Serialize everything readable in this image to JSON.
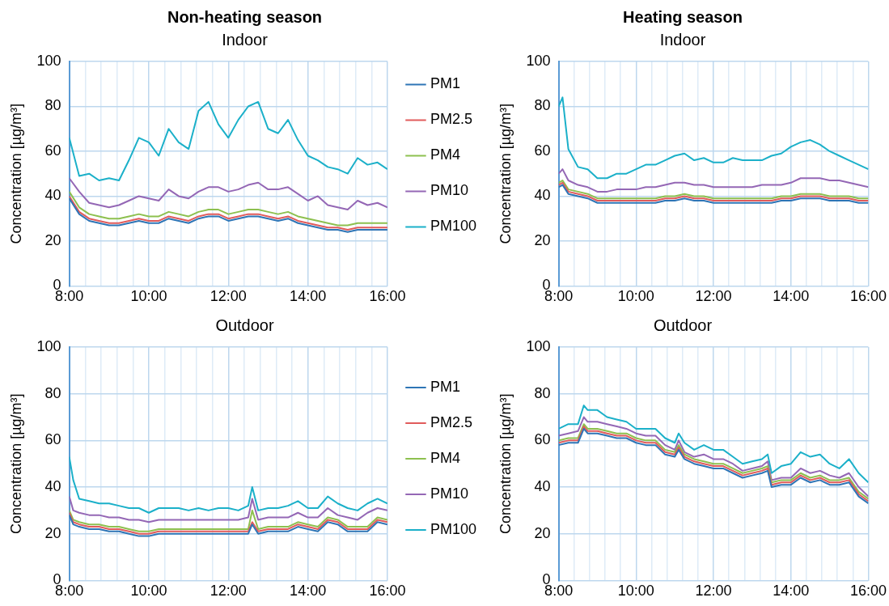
{
  "chart_data": [
    {
      "type": "line",
      "title": "Non-heating season",
      "subtitle": "Indoor",
      "ylabel": "Concentration [µg/m³]",
      "xlim": [
        8,
        16
      ],
      "ylim": [
        0,
        100
      ],
      "yticks": [
        0,
        20,
        40,
        60,
        80,
        100
      ],
      "xticks": [
        {
          "value": 8,
          "label": "8:00"
        },
        {
          "value": 8.4,
          "label": null
        },
        {
          "value": 8.8,
          "label": null
        },
        {
          "value": 9.2,
          "label": null
        },
        {
          "value": 9.6,
          "label": null
        },
        {
          "value": 10,
          "label": "10:00"
        },
        {
          "value": 10.4,
          "label": null
        },
        {
          "value": 10.8,
          "label": null
        },
        {
          "value": 11.2,
          "label": null
        },
        {
          "value": 11.6,
          "label": null
        },
        {
          "value": 12,
          "label": "12:00"
        },
        {
          "value": 12.4,
          "label": null
        },
        {
          "value": 12.8,
          "label": null
        },
        {
          "value": 13.2,
          "label": null
        },
        {
          "value": 13.6,
          "label": null
        },
        {
          "value": 14,
          "label": "14:00"
        },
        {
          "value": 14.4,
          "label": null
        },
        {
          "value": 14.8,
          "label": null
        },
        {
          "value": 15.2,
          "label": null
        },
        {
          "value": 15.6,
          "label": null
        },
        {
          "value": 16,
          "label": "16:00"
        }
      ],
      "grid": true,
      "legend": "right",
      "marker": "none",
      "x": [
        8,
        8.25,
        8.5,
        8.75,
        9,
        9.25,
        9.5,
        9.75,
        10,
        10.25,
        10.5,
        10.75,
        11,
        11.25,
        11.5,
        11.75,
        12,
        12.25,
        12.5,
        12.75,
        13,
        13.25,
        13.5,
        13.75,
        14,
        14.25,
        14.5,
        14.75,
        15,
        15.25,
        15.5,
        15.75,
        16
      ],
      "series": [
        {
          "name": "PM1",
          "color": "#2e75b6",
          "values": [
            39,
            32,
            29,
            28,
            27,
            27,
            28,
            29,
            28,
            28,
            30,
            29,
            28,
            30,
            31,
            31,
            29,
            30,
            31,
            31,
            30,
            29,
            30,
            28,
            27,
            26,
            25,
            25,
            24,
            25,
            25,
            25,
            25
          ]
        },
        {
          "name": "PM2.5",
          "color": "#e15b5b",
          "values": [
            40,
            33,
            30,
            29,
            28,
            28,
            29,
            30,
            29,
            29,
            31,
            30,
            29,
            31,
            32,
            32,
            30,
            31,
            32,
            32,
            31,
            30,
            31,
            29,
            28,
            27,
            26,
            26,
            25,
            26,
            26,
            26,
            26
          ]
        },
        {
          "name": "PM4",
          "color": "#8dc04f",
          "values": [
            42,
            35,
            32,
            31,
            30,
            30,
            31,
            32,
            31,
            31,
            33,
            32,
            31,
            33,
            34,
            34,
            32,
            33,
            34,
            34,
            33,
            32,
            33,
            31,
            30,
            29,
            28,
            27,
            27,
            28,
            28,
            28,
            28
          ]
        },
        {
          "name": "PM10",
          "color": "#9467b5",
          "values": [
            48,
            42,
            37,
            36,
            35,
            36,
            38,
            40,
            39,
            38,
            43,
            40,
            39,
            42,
            44,
            44,
            42,
            43,
            45,
            46,
            43,
            43,
            44,
            41,
            38,
            40,
            36,
            35,
            34,
            38,
            36,
            37,
            35
          ]
        },
        {
          "name": "PM100",
          "color": "#1bb0c9",
          "values": [
            66,
            49,
            50,
            47,
            48,
            47,
            56,
            66,
            64,
            58,
            70,
            64,
            61,
            78,
            82,
            72,
            66,
            74,
            80,
            82,
            70,
            68,
            74,
            65,
            58,
            56,
            53,
            52,
            50,
            57,
            54,
            55,
            52
          ]
        }
      ]
    },
    {
      "type": "line",
      "title": "Heating season",
      "subtitle": "Indoor",
      "ylabel": "Concentration [µg/m³]",
      "xlim": [
        8,
        16
      ],
      "ylim": [
        0,
        100
      ],
      "yticks": [
        0,
        20,
        40,
        60,
        80,
        100
      ],
      "xticks": [
        {
          "value": 8,
          "label": "8:00"
        },
        {
          "value": 8.4,
          "label": null
        },
        {
          "value": 8.8,
          "label": null
        },
        {
          "value": 9.2,
          "label": null
        },
        {
          "value": 9.6,
          "label": null
        },
        {
          "value": 10,
          "label": "10:00"
        },
        {
          "value": 10.4,
          "label": null
        },
        {
          "value": 10.8,
          "label": null
        },
        {
          "value": 11.2,
          "label": null
        },
        {
          "value": 11.6,
          "label": null
        },
        {
          "value": 12,
          "label": "12:00"
        },
        {
          "value": 12.4,
          "label": null
        },
        {
          "value": 12.8,
          "label": null
        },
        {
          "value": 13.2,
          "label": null
        },
        {
          "value": 13.6,
          "label": null
        },
        {
          "value": 14,
          "label": "14:00"
        },
        {
          "value": 14.4,
          "label": null
        },
        {
          "value": 14.8,
          "label": null
        },
        {
          "value": 15.2,
          "label": null
        },
        {
          "value": 15.6,
          "label": null
        },
        {
          "value": 16,
          "label": "16:00"
        }
      ],
      "grid": true,
      "marker": "none",
      "x": [
        8,
        8.1,
        8.25,
        8.5,
        8.75,
        9,
        9.25,
        9.5,
        9.75,
        10,
        10.25,
        10.5,
        10.75,
        11,
        11.25,
        11.5,
        11.75,
        12,
        12.25,
        12.5,
        12.75,
        13,
        13.25,
        13.5,
        13.75,
        14,
        14.25,
        14.5,
        14.75,
        15,
        15.25,
        15.5,
        15.75,
        16
      ],
      "series": [
        {
          "color": "#2e75b6",
          "values": [
            44,
            45,
            41,
            40,
            39,
            37,
            37,
            37,
            37,
            37,
            37,
            37,
            38,
            38,
            39,
            38,
            38,
            37,
            37,
            37,
            37,
            37,
            37,
            37,
            38,
            38,
            39,
            39,
            39,
            38,
            38,
            38,
            37,
            37
          ]
        },
        {
          "color": "#e15b5b",
          "values": [
            45,
            46,
            42,
            41,
            40,
            38,
            38,
            38,
            38,
            38,
            38,
            38,
            39,
            39,
            40,
            39,
            39,
            38,
            38,
            38,
            38,
            38,
            38,
            38,
            39,
            39,
            40,
            40,
            40,
            39,
            39,
            39,
            38,
            38
          ]
        },
        {
          "color": "#8dc04f",
          "values": [
            46,
            47,
            43,
            42,
            41,
            39,
            39,
            39,
            39,
            39,
            39,
            39,
            40,
            40,
            41,
            40,
            40,
            39,
            39,
            39,
            39,
            39,
            39,
            39,
            40,
            40,
            41,
            41,
            41,
            40,
            40,
            40,
            39,
            39
          ]
        },
        {
          "color": "#9467b5",
          "values": [
            50,
            52,
            47,
            45,
            44,
            42,
            42,
            43,
            43,
            43,
            44,
            44,
            45,
            46,
            46,
            45,
            45,
            44,
            44,
            44,
            44,
            44,
            45,
            45,
            45,
            46,
            48,
            48,
            48,
            47,
            47,
            46,
            45,
            44
          ]
        },
        {
          "color": "#1bb0c9",
          "values": [
            80,
            84,
            61,
            53,
            52,
            48,
            48,
            50,
            50,
            52,
            54,
            54,
            56,
            58,
            59,
            56,
            57,
            55,
            55,
            57,
            56,
            56,
            56,
            58,
            59,
            62,
            64,
            65,
            63,
            60,
            58,
            56,
            54,
            52
          ]
        }
      ]
    },
    {
      "type": "line",
      "subtitle": "Outdoor",
      "ylabel": "Concentration [µg/m³]",
      "xlim": [
        8,
        16
      ],
      "ylim": [
        0,
        100
      ],
      "yticks": [
        0,
        20,
        40,
        60,
        80,
        100
      ],
      "xticks": [
        {
          "value": 8,
          "label": "8:00"
        },
        {
          "value": 8.4,
          "label": null
        },
        {
          "value": 8.8,
          "label": null
        },
        {
          "value": 9.2,
          "label": null
        },
        {
          "value": 9.6,
          "label": null
        },
        {
          "value": 10,
          "label": "10:00"
        },
        {
          "value": 10.4,
          "label": null
        },
        {
          "value": 10.8,
          "label": null
        },
        {
          "value": 11.2,
          "label": null
        },
        {
          "value": 11.6,
          "label": null
        },
        {
          "value": 12,
          "label": "12:00"
        },
        {
          "value": 12.4,
          "label": null
        },
        {
          "value": 12.8,
          "label": null
        },
        {
          "value": 13.2,
          "label": null
        },
        {
          "value": 13.6,
          "label": null
        },
        {
          "value": 14,
          "label": "14:00"
        },
        {
          "value": 14.4,
          "label": null
        },
        {
          "value": 14.8,
          "label": null
        },
        {
          "value": 15.2,
          "label": null
        },
        {
          "value": 15.6,
          "label": null
        },
        {
          "value": 16,
          "label": "16:00"
        }
      ],
      "grid": true,
      "legend": "right",
      "marker": "none",
      "x": [
        8,
        8.1,
        8.25,
        8.5,
        8.75,
        9,
        9.25,
        9.5,
        9.75,
        10,
        10.25,
        10.5,
        10.75,
        11,
        11.25,
        11.5,
        11.75,
        12,
        12.25,
        12.5,
        12.6,
        12.75,
        13,
        13.25,
        13.5,
        13.75,
        14,
        14.25,
        14.5,
        14.75,
        15,
        15.25,
        15.5,
        15.75,
        16
      ],
      "series": [
        {
          "name": "PM1",
          "color": "#2e75b6",
          "values": [
            28,
            24,
            23,
            22,
            22,
            21,
            21,
            20,
            19,
            19,
            20,
            20,
            20,
            20,
            20,
            20,
            20,
            20,
            20,
            20,
            24,
            20,
            21,
            21,
            21,
            23,
            22,
            21,
            25,
            24,
            21,
            21,
            21,
            25,
            24
          ]
        },
        {
          "name": "PM2.5",
          "color": "#e15b5b",
          "values": [
            29,
            25,
            24,
            23,
            23,
            22,
            22,
            21,
            20,
            20,
            21,
            21,
            21,
            21,
            21,
            21,
            21,
            21,
            21,
            21,
            25,
            21,
            22,
            22,
            22,
            24,
            23,
            22,
            26,
            25,
            22,
            22,
            22,
            26,
            25
          ]
        },
        {
          "name": "PM4",
          "color": "#8dc04f",
          "values": [
            30,
            26,
            25,
            24,
            24,
            23,
            23,
            22,
            21,
            21,
            22,
            22,
            22,
            22,
            22,
            22,
            22,
            22,
            22,
            22,
            30,
            22,
            23,
            23,
            23,
            25,
            24,
            23,
            27,
            26,
            23,
            23,
            23,
            27,
            26
          ]
        },
        {
          "name": "PM10",
          "color": "#9467b5",
          "values": [
            36,
            30,
            29,
            28,
            28,
            27,
            27,
            26,
            26,
            25,
            26,
            26,
            26,
            26,
            26,
            26,
            26,
            26,
            26,
            27,
            35,
            26,
            27,
            27,
            27,
            29,
            27,
            27,
            31,
            28,
            27,
            26,
            29,
            31,
            30
          ]
        },
        {
          "name": "PM100",
          "color": "#1bb0c9",
          "values": [
            53,
            43,
            35,
            34,
            33,
            33,
            32,
            31,
            31,
            29,
            31,
            31,
            31,
            30,
            31,
            30,
            31,
            31,
            30,
            32,
            40,
            30,
            31,
            31,
            32,
            34,
            31,
            31,
            36,
            33,
            31,
            30,
            33,
            35,
            33
          ]
        }
      ]
    },
    {
      "type": "line",
      "subtitle": "Outdoor",
      "ylabel": "Concentration [µg/m³]",
      "xlim": [
        8,
        16
      ],
      "ylim": [
        0,
        100
      ],
      "yticks": [
        0,
        20,
        40,
        60,
        80,
        100
      ],
      "xticks": [
        {
          "value": 8,
          "label": "8:00"
        },
        {
          "value": 8.4,
          "label": null
        },
        {
          "value": 8.8,
          "label": null
        },
        {
          "value": 9.2,
          "label": null
        },
        {
          "value": 9.6,
          "label": null
        },
        {
          "value": 10,
          "label": "10:00"
        },
        {
          "value": 10.4,
          "label": null
        },
        {
          "value": 10.8,
          "label": null
        },
        {
          "value": 11.2,
          "label": null
        },
        {
          "value": 11.6,
          "label": null
        },
        {
          "value": 12,
          "label": "12:00"
        },
        {
          "value": 12.4,
          "label": null
        },
        {
          "value": 12.8,
          "label": null
        },
        {
          "value": 13.2,
          "label": null
        },
        {
          "value": 13.6,
          "label": null
        },
        {
          "value": 14,
          "label": "14:00"
        },
        {
          "value": 14.4,
          "label": null
        },
        {
          "value": 14.8,
          "label": null
        },
        {
          "value": 15.2,
          "label": null
        },
        {
          "value": 15.6,
          "label": null
        },
        {
          "value": 16,
          "label": "16:00"
        }
      ],
      "grid": true,
      "marker": "none",
      "x": [
        8,
        8.25,
        8.5,
        8.65,
        8.75,
        9,
        9.25,
        9.5,
        9.75,
        10,
        10.25,
        10.5,
        10.75,
        11,
        11.1,
        11.25,
        11.5,
        11.75,
        12,
        12.25,
        12.5,
        12.75,
        13,
        13.25,
        13.4,
        13.5,
        13.75,
        14,
        14.25,
        14.5,
        14.75,
        15,
        15.25,
        15.5,
        15.75,
        16
      ],
      "series": [
        {
          "color": "#2e75b6",
          "values": [
            58,
            59,
            59,
            65,
            63,
            63,
            62,
            61,
            61,
            59,
            58,
            58,
            54,
            53,
            56,
            52,
            50,
            49,
            48,
            48,
            46,
            44,
            45,
            46,
            47,
            40,
            41,
            41,
            44,
            42,
            43,
            41,
            41,
            42,
            36,
            33
          ]
        },
        {
          "color": "#e15b5b",
          "values": [
            59,
            60,
            60,
            66,
            64,
            64,
            63,
            62,
            62,
            60,
            59,
            59,
            55,
            54,
            57,
            53,
            51,
            50,
            49,
            49,
            47,
            45,
            46,
            47,
            48,
            41,
            42,
            42,
            45,
            43,
            44,
            42,
            42,
            43,
            37,
            34
          ]
        },
        {
          "color": "#8dc04f",
          "values": [
            60,
            61,
            61,
            67,
            65,
            65,
            64,
            63,
            63,
            61,
            60,
            60,
            56,
            55,
            58,
            54,
            52,
            51,
            50,
            50,
            48,
            46,
            47,
            48,
            49,
            42,
            43,
            43,
            46,
            44,
            45,
            43,
            43,
            44,
            38,
            35
          ]
        },
        {
          "color": "#9467b5",
          "values": [
            62,
            63,
            64,
            70,
            68,
            68,
            67,
            66,
            65,
            63,
            62,
            62,
            58,
            56,
            60,
            55,
            53,
            54,
            52,
            52,
            50,
            47,
            48,
            49,
            51,
            43,
            44,
            44,
            48,
            46,
            47,
            45,
            44,
            46,
            40,
            36
          ]
        },
        {
          "color": "#1bb0c9",
          "values": [
            65,
            67,
            67,
            75,
            73,
            73,
            70,
            69,
            68,
            65,
            65,
            65,
            61,
            59,
            63,
            59,
            56,
            58,
            56,
            56,
            53,
            50,
            51,
            52,
            54,
            46,
            49,
            50,
            55,
            53,
            54,
            50,
            48,
            52,
            46,
            42
          ]
        }
      ]
    }
  ]
}
